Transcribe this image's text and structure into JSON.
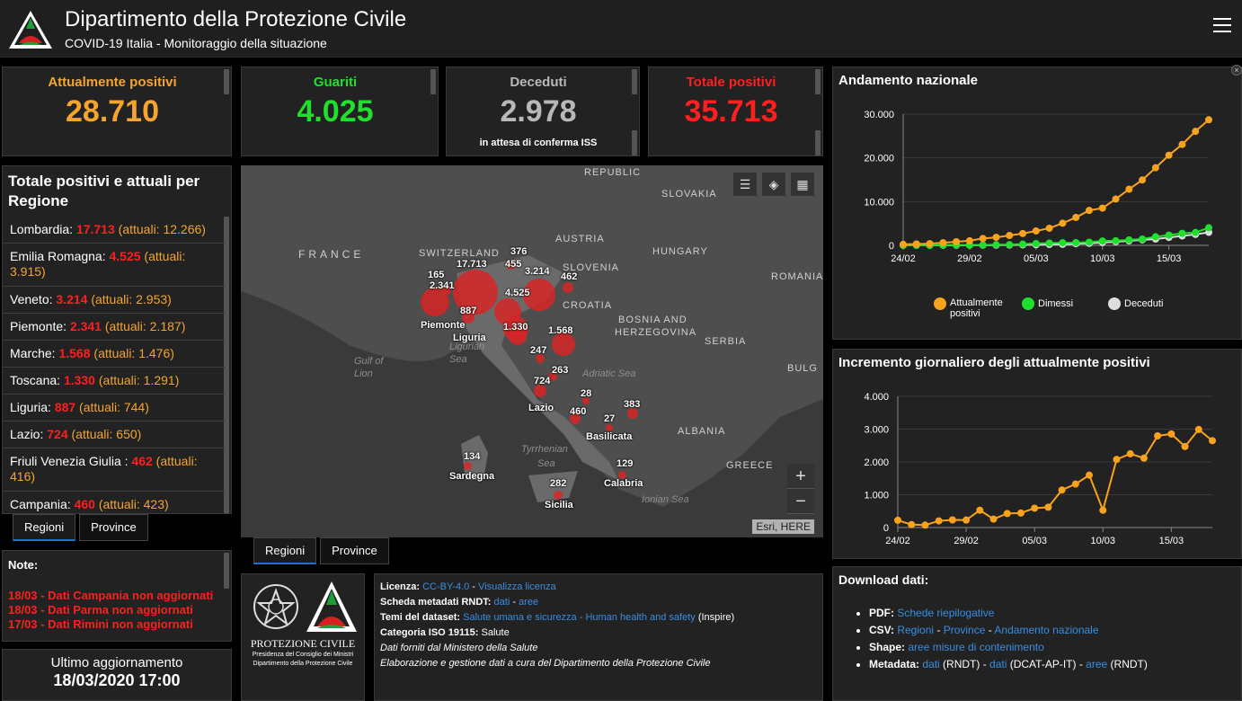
{
  "header": {
    "title": "Dipartimento della Protezione Civile",
    "subtitle": "COVID-19 Italia - Monitoraggio della situazione"
  },
  "stats": [
    {
      "label": "Attualmente positivi",
      "value": "28.710",
      "note": "",
      "color": "#f4a530"
    },
    {
      "label": "Guariti",
      "value": "4.025",
      "note": "",
      "color": "#21e02d"
    },
    {
      "label": "Deceduti",
      "value": "2.978",
      "note": "in attesa di conferma ISS",
      "color": "#b8b8b8"
    },
    {
      "label": "Totale positivi",
      "value": "35.713",
      "note": "",
      "color": "#ff1f1f"
    }
  ],
  "regions_panel": {
    "title": "Totale positivi e attuali per Regione",
    "rows": [
      {
        "name": "Lombardia: ",
        "total": "17.713",
        "current": " (attuali: 12.266)"
      },
      {
        "name": "Emilia Romagna: ",
        "total": "4.525",
        "current": " (attuali: 3.915)"
      },
      {
        "name": "Veneto: ",
        "total": "3.214",
        "current": " (attuali: 2.953)"
      },
      {
        "name": "Piemonte: ",
        "total": "2.341",
        "current": " (attuali: 2.187)"
      },
      {
        "name": "Marche: ",
        "total": "1.568",
        "current": " (attuali: 1.476)"
      },
      {
        "name": "Toscana: ",
        "total": "1.330",
        "current": " (attuali: 1.291)"
      },
      {
        "name": "Liguria: ",
        "total": "887",
        "current": " (attuali: 744)"
      },
      {
        "name": "Lazio: ",
        "total": "724",
        "current": " (attuali: 650)"
      },
      {
        "name": "Friuli Venezia Giulia : ",
        "total": "462",
        "current": " (attuali: 416)"
      },
      {
        "name": "Campania: ",
        "total": "460",
        "current": " (attuali: 423)"
      }
    ],
    "tabs": [
      "Regioni",
      "Province"
    ]
  },
  "notes": {
    "title": "Note:",
    "items": [
      "18/03 - Dati Campania non aggiornati",
      "18/03 - Dati Parma non aggiornati",
      "17/03 - Dati Rimini non aggiornati"
    ]
  },
  "update": {
    "label": "Ultimo aggiornamento",
    "value": "18/03/2020 17:00"
  },
  "map": {
    "countries": [
      "FRANCE",
      "SWITZERLAND",
      "AUSTRIA",
      "SLOVENIA",
      "CROATIA",
      "HUNGARY",
      "SLOVAKIA",
      "REPUBLIC",
      "ROMANIA",
      "BOSNIA AND",
      "HERZEGOVINA",
      "SERBIA",
      "BULG",
      "ALBANIA",
      "GREECE"
    ],
    "seas": [
      "Gulf of",
      "Lion",
      "Ligurian",
      "Sea",
      "Adriatic Sea",
      "Tyrrhenian",
      "Sea",
      "Ionian Sea"
    ],
    "values": [
      "17.713",
      "4.525",
      "3.214",
      "2.341",
      "1.568",
      "1.330",
      "887",
      "724",
      "462",
      "460",
      "455",
      "383",
      "376",
      "282",
      "263",
      "247",
      "165",
      "134",
      "129",
      "28",
      "27"
    ],
    "region_names": [
      "Piemonte",
      "Liguria",
      "Lazio",
      "Basilicata",
      "Sardegna",
      "Calabria",
      "Sicilia"
    ],
    "attribution": "Esri, HERE",
    "tabs": [
      "Regioni",
      "Province"
    ]
  },
  "info": {
    "licence_label": "Licenza: ",
    "licence_value": "CC-BY-4.0",
    "licence_link": "Visualizza licenza",
    "rndt_label": "Scheda metadati RNDT: ",
    "rndt_link1": "dati",
    "rndt_link2": "aree",
    "themes_label": "Temi del dataset: ",
    "themes_link": "Salute umana e sicurezza - Human health and safety",
    "themes_suffix": " (Inspire)",
    "iso_label": "Categoria ISO 19115: ",
    "iso_value": "Salute",
    "source": "Dati forniti dal Ministero della Salute",
    "elaboration": "Elaborazione e gestione dati a cura del Dipartimento della Protezione Civile",
    "logo_title": "PROTEZIONE CIVILE",
    "logo_sub1": "Presidenza del Consiglio dei Ministri",
    "logo_sub2": "Dipartimento della Protezione Civile"
  },
  "downloads": {
    "title": "Download dati:",
    "pdf_label": "PDF: ",
    "pdf_link": "Schede riepilogative",
    "csv_label": "CSV: ",
    "csv_regioni": "Regioni",
    "csv_province": "Province",
    "csv_andamento": "Andamento nazionale",
    "shape_label": "Shape: ",
    "shape_link": "aree misure di contenimento",
    "meta_label": "Metadata: ",
    "meta_link1": "dati",
    "meta_rndt": " (RNDT) - ",
    "meta_link2": "dati",
    "meta_dcat": " (DCAT-AP-IT) - ",
    "meta_link3": "aree",
    "meta_end": " (RNDT)"
  },
  "chart_data": [
    {
      "type": "line",
      "title": "Andamento nazionale",
      "x": [
        "24/02",
        "25/02",
        "26/02",
        "27/02",
        "28/02",
        "29/02",
        "01/03",
        "02/03",
        "03/03",
        "04/03",
        "05/03",
        "06/03",
        "07/03",
        "08/03",
        "09/03",
        "10/03",
        "11/03",
        "12/03",
        "13/03",
        "14/03",
        "15/03",
        "16/03",
        "17/03",
        "18/03"
      ],
      "xticks": [
        "24/02",
        "29/02",
        "05/03",
        "10/03",
        "15/03"
      ],
      "ylim": [
        0,
        30000
      ],
      "yticks": [
        "0",
        "10.000",
        "20.000",
        "30.000"
      ],
      "series": [
        {
          "name": "Attualmente positivi",
          "color": "#f9a21d",
          "values": [
            221,
            311,
            385,
            588,
            821,
            1049,
            1577,
            1835,
            2263,
            2706,
            3296,
            3916,
            5061,
            6387,
            7985,
            8514,
            10590,
            12839,
            14955,
            17750,
            20603,
            23073,
            26062,
            28710
          ]
        },
        {
          "name": "Dimessi",
          "color": "#21e02d",
          "values": [
            1,
            1,
            3,
            45,
            46,
            50,
            83,
            149,
            160,
            276,
            414,
            523,
            589,
            622,
            724,
            1004,
            1045,
            1258,
            1439,
            1966,
            2335,
            2749,
            2941,
            4025
          ]
        },
        {
          "name": "Deceduti",
          "color": "#dddddd",
          "values": [
            7,
            10,
            12,
            17,
            21,
            29,
            34,
            52,
            79,
            107,
            148,
            197,
            233,
            366,
            463,
            631,
            827,
            1016,
            1266,
            1441,
            1809,
            2158,
            2503,
            2978
          ]
        }
      ],
      "legend": "bottom"
    },
    {
      "type": "line",
      "title": "Incremento giornaliero degli attualmente positivi",
      "x": [
        "24/02",
        "25/02",
        "26/02",
        "27/02",
        "28/02",
        "29/02",
        "01/03",
        "02/03",
        "03/03",
        "04/03",
        "05/03",
        "06/03",
        "07/03",
        "08/03",
        "09/03",
        "10/03",
        "11/03",
        "12/03",
        "13/03",
        "14/03",
        "15/03",
        "16/03",
        "17/03",
        "18/03"
      ],
      "xticks": [
        "24/02",
        "29/02",
        "05/03",
        "10/03",
        "15/03"
      ],
      "ylim": [
        0,
        4000
      ],
      "yticks": [
        "0",
        "1.000",
        "2.000",
        "3.000",
        "4.000"
      ],
      "series": [
        {
          "name": "",
          "color": "#f9a21d",
          "values": [
            221,
            90,
            74,
            203,
            233,
            228,
            528,
            258,
            428,
            443,
            590,
            620,
            1145,
            1326,
            1598,
            529,
            2076,
            2249,
            2116,
            2795,
            2853,
            2470,
            2989,
            2648
          ]
        }
      ]
    }
  ]
}
